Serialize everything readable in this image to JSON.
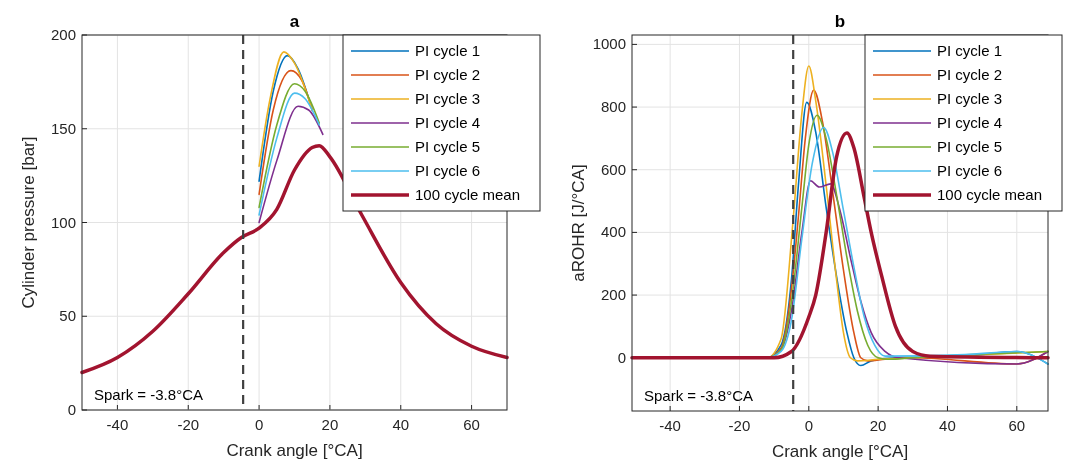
{
  "chart_data": [
    {
      "type": "line",
      "title": "a",
      "xlabel": "Crank angle [°CA]",
      "ylabel": "Cylinder pressure [bar]",
      "xlim": [
        -50,
        70
      ],
      "ylim": [
        0,
        200
      ],
      "xticks": [
        -40,
        -20,
        0,
        20,
        40,
        60
      ],
      "yticks": [
        0,
        50,
        100,
        150,
        200
      ],
      "grid": true,
      "legend": "top right",
      "ref_lines": [
        {
          "axis": "x",
          "value": -4.5,
          "color": "#404040",
          "line_style": "dashed"
        }
      ],
      "annotations": [
        "Spark = -3.8°CA"
      ],
      "series": [
        {
          "name": "PI cycle 1",
          "color": "#0072bd",
          "x": [
            0,
            4,
            8,
            11,
            15
          ],
          "values": [
            122,
            170,
            189,
            182,
            160
          ]
        },
        {
          "name": "PI cycle 2",
          "color": "#d95319",
          "x": [
            0,
            4,
            9,
            12,
            15
          ],
          "values": [
            115,
            160,
            181,
            176,
            160
          ]
        },
        {
          "name": "PI cycle 3",
          "color": "#edb120",
          "x": [
            0,
            3,
            7,
            10,
            15
          ],
          "values": [
            130,
            165,
            191,
            185,
            160
          ]
        },
        {
          "name": "PI cycle 4",
          "color": "#7e2f8e",
          "x": [
            0,
            5,
            11,
            14,
            18
          ],
          "values": [
            100,
            133,
            162,
            160,
            147
          ]
        },
        {
          "name": "PI cycle 5",
          "color": "#77ac30",
          "x": [
            0,
            5,
            10,
            13,
            17
          ],
          "values": [
            108,
            152,
            174,
            170,
            153
          ]
        },
        {
          "name": "PI cycle 6",
          "color": "#4dbeee",
          "x": [
            0,
            5,
            10,
            13,
            17
          ],
          "values": [
            104,
            145,
            169,
            166,
            152
          ]
        },
        {
          "name": "100 cycle mean",
          "color": "#a2142f",
          "x": [
            -50,
            -40,
            -30,
            -20,
            -10,
            -5,
            0,
            5,
            10,
            15,
            17,
            20,
            29,
            40,
            50,
            60,
            70
          ],
          "values": [
            20,
            28,
            42,
            62,
            84,
            92,
            97,
            107,
            128,
            140,
            141,
            135,
            104,
            68,
            46,
            34,
            28
          ]
        }
      ]
    },
    {
      "type": "line",
      "title": "b",
      "xlabel": "Crank angle [°CA]",
      "ylabel": "aROHR [J/°CA]",
      "xlim": [
        -51,
        69
      ],
      "ylim": [
        -170,
        1030
      ],
      "xticks": [
        -40,
        -20,
        0,
        20,
        40,
        60
      ],
      "yticks": [
        0,
        200,
        400,
        600,
        800,
        1000
      ],
      "grid": true,
      "legend": "top right",
      "ref_lines": [
        {
          "axis": "x",
          "value": -4.5,
          "color": "#404040",
          "line_style": "dashed"
        }
      ],
      "annotations": [
        "Spark = -3.8°CA"
      ],
      "series": [
        {
          "name": "PI cycle 1",
          "color": "#0072bd",
          "x": [
            -51,
            -12,
            -8,
            -5,
            -3,
            -0.6,
            2,
            5,
            8,
            11,
            13,
            15,
            18,
            25,
            45,
            60,
            69
          ],
          "values": [
            0,
            0,
            40,
            250,
            550,
            815,
            720,
            480,
            260,
            80,
            0,
            -25,
            -10,
            0,
            5,
            20,
            -20
          ]
        },
        {
          "name": "PI cycle 2",
          "color": "#d95319",
          "x": [
            -51,
            -12,
            -8,
            -5,
            -3,
            -1,
            1.4,
            4,
            7,
            10,
            13,
            15,
            17,
            22,
            30,
            60,
            69
          ],
          "values": [
            0,
            0,
            30,
            220,
            450,
            700,
            854,
            750,
            520,
            280,
            80,
            0,
            -10,
            -5,
            0,
            -20,
            20
          ]
        },
        {
          "name": "PI cycle 3",
          "color": "#edb120",
          "x": [
            -51,
            -12,
            -8,
            -4.6,
            -2,
            0,
            2,
            5,
            8,
            10,
            12,
            14,
            20,
            30,
            69
          ],
          "values": [
            0,
            0,
            60,
            430,
            780,
            931,
            820,
            550,
            250,
            80,
            0,
            -10,
            -5,
            0,
            20
          ]
        },
        {
          "name": "PI cycle 4",
          "color": "#7e2f8e",
          "x": [
            -51,
            -12,
            -8,
            -5,
            -2,
            0.5,
            3,
            6.3,
            9,
            12,
            15,
            18,
            22,
            26,
            60,
            69
          ],
          "values": [
            0,
            0,
            25,
            150,
            400,
            565,
            545,
            555,
            470,
            320,
            180,
            80,
            20,
            0,
            -20,
            20
          ]
        },
        {
          "name": "PI cycle 5",
          "color": "#77ac30",
          "x": [
            -51,
            -12,
            -8,
            -5,
            -2,
            0,
            2.4,
            5,
            8,
            11,
            14,
            17,
            20,
            23,
            30,
            69
          ],
          "values": [
            0,
            0,
            25,
            180,
            480,
            680,
            774,
            700,
            520,
            320,
            150,
            40,
            0,
            -5,
            0,
            20
          ]
        },
        {
          "name": "PI cycle 6",
          "color": "#4dbeee",
          "x": [
            -51,
            -12,
            -8,
            -5,
            -2,
            1,
            4.3,
            7,
            10,
            13,
            16,
            19,
            22,
            45,
            60,
            69
          ],
          "values": [
            0,
            0,
            20,
            120,
            380,
            620,
            735,
            650,
            470,
            290,
            130,
            40,
            5,
            10,
            20,
            -20
          ]
        },
        {
          "name": "100 cycle mean",
          "color": "#a2142f",
          "x": [
            -51,
            -10,
            -5,
            0,
            2,
            5,
            8,
            11,
            13,
            16,
            18,
            21,
            25,
            30,
            35,
            69
          ],
          "values": [
            0,
            0,
            20,
            130,
            200,
            400,
            640,
            717,
            670,
            510,
            400,
            262,
            100,
            20,
            5,
            0
          ]
        }
      ]
    }
  ]
}
